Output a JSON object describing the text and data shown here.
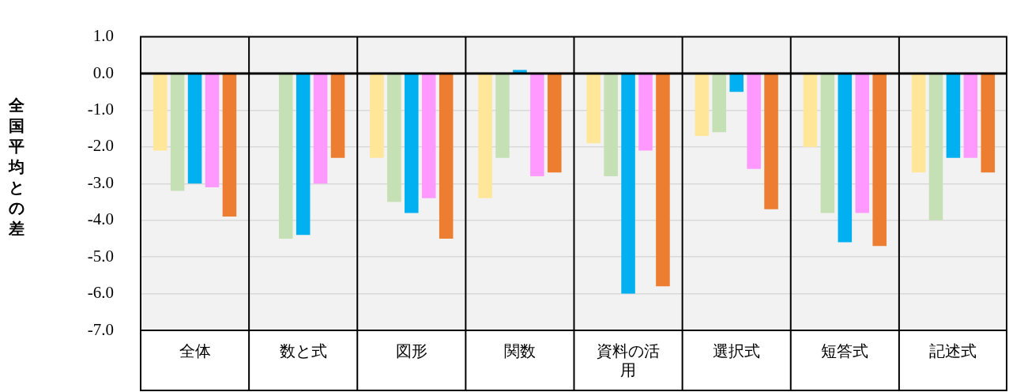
{
  "chart_data": {
    "type": "bar",
    "ylabel": "全国平均との差",
    "categories": [
      "全体",
      "数と式",
      "図形",
      "関数",
      "資料の活用",
      "選択式",
      "短答式",
      "記述式"
    ],
    "series": [
      {
        "color": "#ffe699",
        "values": [
          -2.1,
          null,
          -2.3,
          -3.4,
          -1.9,
          -1.7,
          -2.0,
          -2.7
        ]
      },
      {
        "color": "#c5e0b4",
        "values": [
          -3.2,
          -4.5,
          -3.5,
          -2.3,
          -2.8,
          -1.6,
          -3.8,
          -4.0
        ]
      },
      {
        "color": "#00b0f0",
        "values": [
          -3.0,
          -4.4,
          -3.8,
          0.1,
          -6.0,
          -0.5,
          -4.6,
          -2.3
        ]
      },
      {
        "color": "#ff99ff",
        "values": [
          -3.1,
          -3.0,
          -3.4,
          -2.8,
          -2.1,
          -2.6,
          -3.8,
          -2.3
        ]
      },
      {
        "color": "#ed7d31",
        "values": [
          -3.9,
          -2.3,
          -4.5,
          -2.7,
          -5.8,
          -3.7,
          -4.7,
          -2.7
        ]
      }
    ],
    "ylim": [
      -7,
      1
    ],
    "yticks": [
      {
        "value": 1,
        "label": "1.0"
      },
      {
        "value": 0,
        "label": "0.0"
      },
      {
        "value": -1,
        "label": "-1.0"
      },
      {
        "value": -2,
        "label": "-2.0"
      },
      {
        "value": -3,
        "label": "-3.0"
      },
      {
        "value": -4,
        "label": "-4.0"
      },
      {
        "value": -5,
        "label": "-5.0"
      },
      {
        "value": -6,
        "label": "-6.0"
      },
      {
        "value": -7,
        "label": "-7.0"
      }
    ],
    "grid": "y",
    "legend": false
  }
}
